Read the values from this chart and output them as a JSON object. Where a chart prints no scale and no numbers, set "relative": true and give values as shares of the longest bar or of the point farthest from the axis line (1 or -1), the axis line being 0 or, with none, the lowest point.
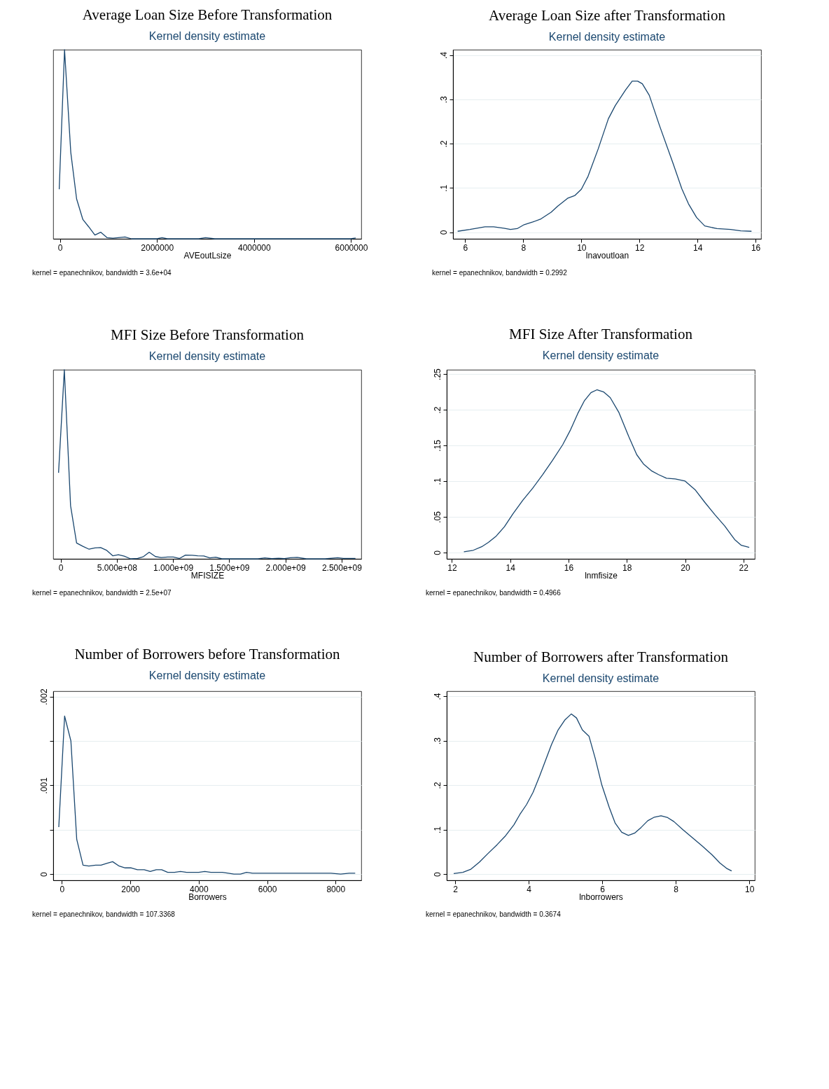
{
  "chart_data": [
    {
      "type": "line",
      "title": "Average Loan Size Before Transformation",
      "subtitle": "Kernel density estimate",
      "xlabel": "AVEoutLsize",
      "annotations": [
        "kernel = epanechnikov, bandwidth =  3.6e+04"
      ],
      "relative": true,
      "xlim": [
        -138000,
        6210000
      ],
      "xticks": [
        0,
        2000000,
        4000000,
        6000000
      ],
      "tick_labels": "x",
      "x": [
        -14300,
        95500,
        224000,
        344000,
        473000,
        592000,
        721000,
        840000,
        974000,
        1093000,
        1341000,
        1475000,
        2000000,
        2105000,
        2215000,
        2859000,
        3002000,
        3193000,
        5986000,
        6095000
      ],
      "series": [
        {
          "color": "#1a476f",
          "values": [
            0.262,
            1,
            0.457,
            0.211,
            0.102,
            0.064,
            0.02,
            0.035,
            0.006,
            0.003,
            0.01,
            0,
            0,
            0.006,
            0,
            0,
            0.006,
            0,
            0,
            0.004
          ]
        }
      ]
    },
    {
      "type": "line",
      "title": "Average Loan Size after Transformation",
      "subtitle": "Kernel density estimate",
      "xlabel": "lnavoutloan",
      "annotations": [
        "kernel = epanechnikov, bandwidth = 0.2992"
      ],
      "xlim": [
        5.58,
        16.19
      ],
      "xticks": [
        6,
        8,
        10,
        12,
        14,
        16
      ],
      "ylim": [
        -0.015,
        0.412
      ],
      "yticks": [
        {
          "value": 0,
          "label": "0"
        },
        {
          "value": 0.1,
          "label": ".1"
        },
        {
          "value": 0.2,
          "label": ".2"
        },
        {
          "value": 0.3,
          "label": ".3"
        },
        {
          "value": 0.4,
          "label": ".4"
        }
      ],
      "grid": "y",
      "x": [
        5.74,
        6.16,
        6.68,
        6.98,
        7.33,
        7.56,
        7.79,
        8.03,
        8.33,
        8.61,
        8.96,
        9.19,
        9.54,
        9.78,
        10.0,
        10.23,
        10.58,
        10.93,
        11.17,
        11.52,
        11.75,
        11.94,
        12.1,
        12.34,
        12.69,
        13.16,
        13.46,
        13.69,
        13.97,
        14.25,
        14.67,
        15.14,
        15.49,
        15.86
      ],
      "series": [
        {
          "color": "#1a476f",
          "values": [
            0.002,
            0.006,
            0.012,
            0.012,
            0.009,
            0.006,
            0.008,
            0.017,
            0.023,
            0.03,
            0.045,
            0.059,
            0.077,
            0.083,
            0.097,
            0.126,
            0.188,
            0.256,
            0.286,
            0.321,
            0.341,
            0.341,
            0.335,
            0.309,
            0.241,
            0.155,
            0.098,
            0.064,
            0.033,
            0.014,
            0.008,
            0.006,
            0.003,
            0.002
          ]
        }
      ]
    },
    {
      "type": "line",
      "title": "MFI Size Before Transformation",
      "subtitle": "Kernel density estimate",
      "xlabel": "MFISIZE",
      "annotations": [
        "kernel = epanechnikov, bandwidth =  2.5e+07"
      ],
      "relative": true,
      "xlim": [
        -66000000,
        2675000000
      ],
      "xticks": [
        0,
        {
          "value": 500000000,
          "label": "5.000e+08"
        },
        {
          "value": 1000000000,
          "label": "1.000e+09"
        },
        {
          "value": 1500000000,
          "label": "1.500e+09"
        },
        {
          "value": 2000000000,
          "label": "2.000e+09"
        },
        {
          "value": 2500000000,
          "label": "2.500e+09"
        }
      ],
      "tick_labels": "x",
      "x": [
        -18500000,
        32900000,
        88500000,
        142000000,
        198000000,
        253000000,
        305000000,
        356000000,
        407000000,
        465000000,
        514000000,
        566000000,
        623000000,
        685000000,
        737000000,
        788000000,
        844000000,
        895000000,
        953000000,
        1004000000,
        1056000000,
        1111000000,
        1169000000,
        1220000000,
        1274000000,
        1327000000,
        1379000000,
        1436000000,
        1755000000,
        1817000000,
        1879000000,
        1940000000,
        1992000000,
        2043000000,
        2105000000,
        2187000000,
        2352000000,
        2465000000,
        2516000000,
        2623000000
      ],
      "series": [
        {
          "color": "#1a476f",
          "values": [
            0.455,
            1,
            0.281,
            0.084,
            0.066,
            0.051,
            0.058,
            0.06,
            0.046,
            0.016,
            0.022,
            0.014,
            0,
            0.002,
            0.012,
            0.035,
            0.012,
            0.007,
            0.01,
            0.01,
            0.002,
            0.02,
            0.019,
            0.016,
            0.015,
            0.005,
            0.009,
            0,
            0,
            0.005,
            0.001,
            0.003,
            0.001,
            0.006,
            0.008,
            0,
            0,
            0.006,
            0.002,
            0.002
          ]
        }
      ]
    },
    {
      "type": "line",
      "title": "MFI Size After Transformation",
      "subtitle": "Kernel density estimate",
      "xlabel": "lnmfisize",
      "annotations": [
        "kernel = epanechnikov, bandwidth = 0.4966"
      ],
      "xlim": [
        11.82,
        22.39
      ],
      "xticks": [
        12,
        14,
        16,
        18,
        20,
        22
      ],
      "ylim": [
        -0.009,
        0.256
      ],
      "yticks": [
        {
          "value": 0,
          "label": "0"
        },
        {
          "value": 0.05,
          "label": ".05"
        },
        {
          "value": 0.1,
          "label": ".1"
        },
        {
          "value": 0.15,
          "label": ".15"
        },
        {
          "value": 0.2,
          "label": ".2"
        },
        {
          "value": 0.25,
          "label": ".25"
        }
      ],
      "grid": "y",
      "x": [
        12.41,
        12.73,
        13.02,
        13.25,
        13.52,
        13.8,
        14.09,
        14.43,
        14.77,
        15.11,
        15.45,
        15.8,
        16.07,
        16.32,
        16.55,
        16.77,
        16.98,
        17.2,
        17.43,
        17.73,
        18.07,
        18.34,
        18.57,
        18.86,
        19.09,
        19.36,
        19.66,
        20.0,
        20.34,
        20.68,
        21.02,
        21.36,
        21.7,
        21.93,
        22.2
      ],
      "series": [
        {
          "color": "#1a476f",
          "values": [
            0.001,
            0.003,
            0.008,
            0.014,
            0.023,
            0.036,
            0.054,
            0.073,
            0.09,
            0.109,
            0.129,
            0.151,
            0.172,
            0.195,
            0.213,
            0.224,
            0.228,
            0.225,
            0.217,
            0.196,
            0.162,
            0.137,
            0.124,
            0.114,
            0.109,
            0.104,
            0.103,
            0.1,
            0.088,
            0.07,
            0.053,
            0.037,
            0.018,
            0.01,
            0.007
          ]
        }
      ]
    },
    {
      "type": "line",
      "title": "Number of Borrowers before Transformation",
      "subtitle": "Kernel density estimate",
      "xlabel": "Borrowers",
      "annotations": [
        "kernel = epanechnikov, bandwidth = 107.3368"
      ],
      "xlim": [
        -255,
        8752
      ],
      "xticks": [
        0,
        2000,
        4000,
        6000,
        8000
      ],
      "ylim": [
        -7e-05,
        0.00206
      ],
      "yticks": [
        {
          "value": 0,
          "label": "0"
        },
        {
          "value": 0.0005,
          "label": null
        },
        {
          "value": 0.001,
          "label": ".001"
        },
        {
          "value": 0.0015,
          "label": null
        },
        {
          "value": 0.002,
          "label": ".002"
        }
      ],
      "grid": "y",
      "x": [
        -92,
        78,
        262,
        433,
        617,
        787,
        986,
        1142,
        1305,
        1482,
        1674,
        1851,
        2028,
        2206,
        2404,
        2582,
        2759,
        2915,
        3092,
        3291,
        3468,
        3645,
        3823,
        4000,
        4177,
        4355,
        4511,
        4688,
        4865,
        5028,
        5220,
        5397,
        5574,
        5950,
        6305,
        6482,
        6695,
        6872,
        7014,
        7227,
        7723,
        7865,
        8149,
        8397,
        8574
      ],
      "series": [
        {
          "color": "#1a476f",
          "values": [
            0.00053,
            0.00178,
            0.0015,
            0.00039,
            0.0001,
            9e-05,
            0.0001,
            0.0001,
            0.00012,
            0.00014,
            9e-05,
            7e-05,
            7e-05,
            5e-05,
            5e-05,
            3e-05,
            5e-05,
            5e-05,
            2e-05,
            2e-05,
            3e-05,
            2e-05,
            2e-05,
            2e-05,
            3e-05,
            2e-05,
            2e-05,
            2e-05,
            1e-05,
            0,
            0,
            2e-05,
            1e-05,
            1e-05,
            1e-05,
            1e-05,
            1e-05,
            1e-05,
            1e-05,
            1e-05,
            1e-05,
            1e-05,
            0,
            1e-05,
            1e-05
          ]
        }
      ]
    },
    {
      "type": "line",
      "title": "Number of Borrowers after Transformation",
      "subtitle": "Kernel density estimate",
      "xlabel": "lnborrowers",
      "annotations": [
        "kernel = epanechnikov, bandwidth = 0.3674"
      ],
      "xlim": [
        1.77,
        10.15
      ],
      "xticks": [
        2,
        4,
        6,
        8,
        10
      ],
      "ylim": [
        -0.014,
        0.411
      ],
      "yticks": [
        {
          "value": 0,
          "label": "0"
        },
        {
          "value": 0.1,
          "label": ".1"
        },
        {
          "value": 0.2,
          "label": ".2"
        },
        {
          "value": 0.3,
          "label": ".3"
        },
        {
          "value": 0.4,
          "label": ".4"
        }
      ],
      "grid": "y",
      "x": [
        1.96,
        2.21,
        2.43,
        2.66,
        2.89,
        3.14,
        3.37,
        3.6,
        3.76,
        3.94,
        4.12,
        4.3,
        4.46,
        4.62,
        4.8,
        4.98,
        5.16,
        5.3,
        5.46,
        5.64,
        5.81,
        5.99,
        6.19,
        6.35,
        6.53,
        6.71,
        6.88,
        7.06,
        7.24,
        7.42,
        7.6,
        7.78,
        7.95,
        8.19,
        8.45,
        8.72,
        8.99,
        9.2,
        9.38,
        9.52
      ],
      "series": [
        {
          "color": "#1a476f",
          "values": [
            0.001,
            0.004,
            0.011,
            0.027,
            0.046,
            0.066,
            0.086,
            0.111,
            0.134,
            0.156,
            0.184,
            0.221,
            0.256,
            0.291,
            0.324,
            0.346,
            0.36,
            0.351,
            0.324,
            0.31,
            0.26,
            0.2,
            0.15,
            0.115,
            0.094,
            0.087,
            0.092,
            0.105,
            0.12,
            0.128,
            0.131,
            0.127,
            0.118,
            0.1,
            0.082,
            0.063,
            0.043,
            0.025,
            0.013,
            0.007
          ]
        }
      ]
    }
  ]
}
